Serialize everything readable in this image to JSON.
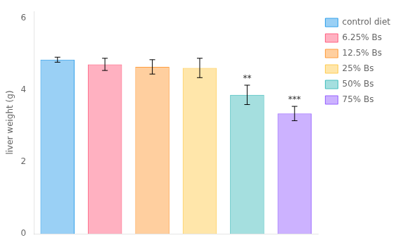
{
  "chart_data": {
    "type": "bar",
    "categories": [
      "control diet",
      "6.25% Bs",
      "12.5% Bs",
      "25% Bs",
      "50% Bs",
      "75% Bs"
    ],
    "values": [
      4.85,
      4.72,
      4.65,
      4.62,
      3.87,
      3.35
    ],
    "errors": [
      0.07,
      0.17,
      0.2,
      0.27,
      0.27,
      0.2
    ],
    "significance": [
      null,
      null,
      null,
      null,
      "**",
      "***"
    ],
    "ylabel": "liver weight (g)",
    "ylim": [
      0,
      6.2
    ],
    "yticks": [
      0,
      2,
      4,
      6
    ],
    "grid": false,
    "legend": "upper right",
    "tick_labels": "y"
  }
}
